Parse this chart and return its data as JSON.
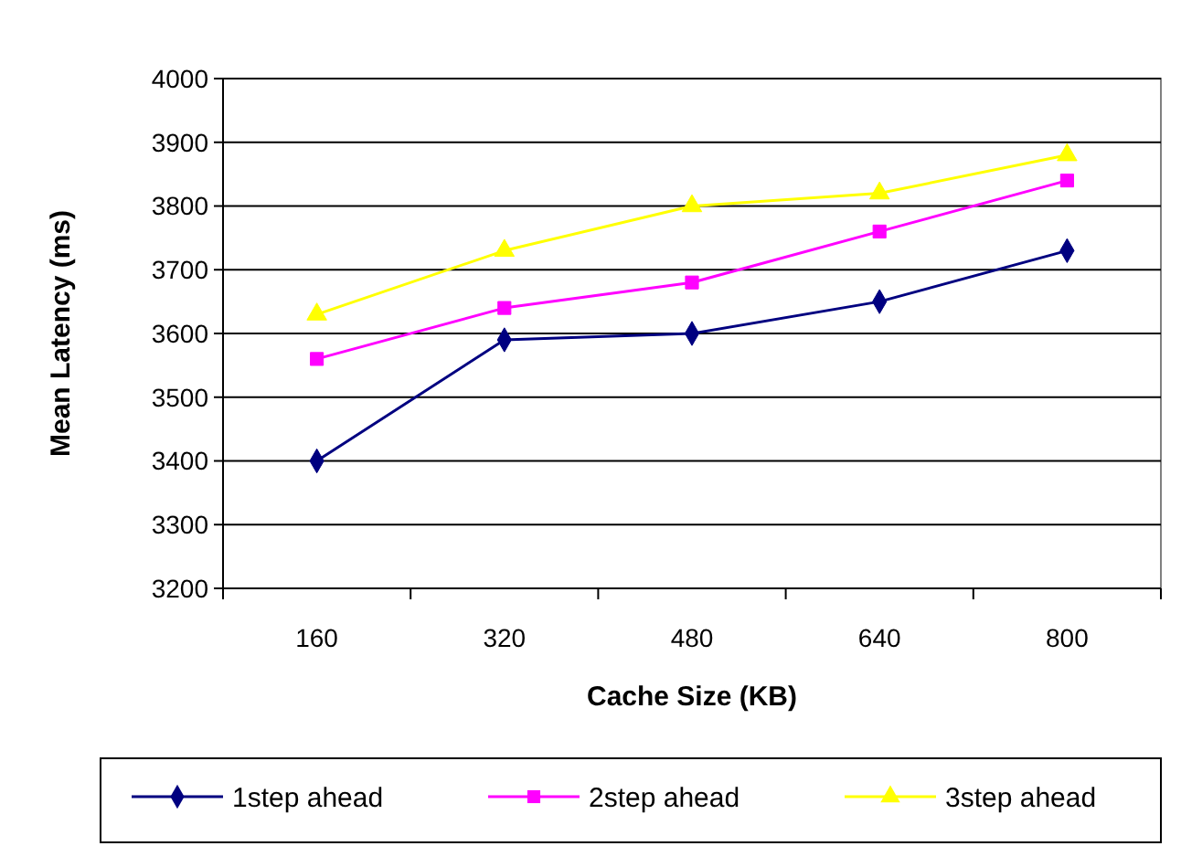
{
  "chart_data": {
    "type": "line",
    "xlabel": "Cache Size (KB)",
    "ylabel": "Mean Latency (ms)",
    "categories": [
      "160",
      "320",
      "480",
      "640",
      "800"
    ],
    "series": [
      {
        "name": "1step ahead",
        "color": "#000080",
        "marker": "diamond",
        "values": [
          3400,
          3590,
          3600,
          3650,
          3730
        ]
      },
      {
        "name": "2step ahead",
        "color": "#ff00ff",
        "marker": "square",
        "values": [
          3560,
          3640,
          3680,
          3760,
          3840
        ]
      },
      {
        "name": "3step ahead",
        "color": "#ffff00",
        "marker": "triangle",
        "values": [
          3630,
          3730,
          3800,
          3820,
          3880
        ]
      }
    ],
    "ylim": [
      3200,
      4000
    ],
    "yticks": [
      3200,
      3300,
      3400,
      3500,
      3600,
      3700,
      3800,
      3900,
      4000
    ],
    "grid": "y",
    "legend": "bottom",
    "line_style": "solid"
  }
}
